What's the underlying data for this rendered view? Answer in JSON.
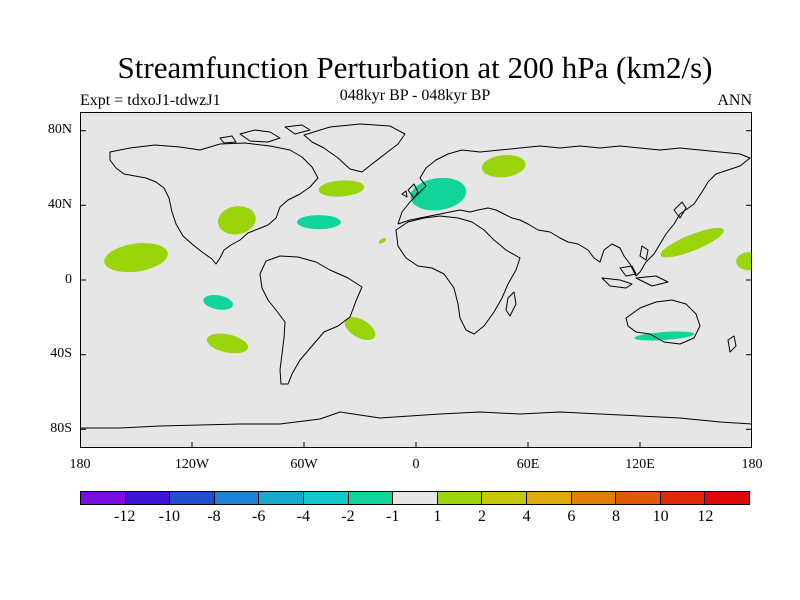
{
  "title": "Streamfunction Perturbation at 200 hPa (km2/s)",
  "subtitle_left": "Expt = tdxoJ1-tdwzJ1",
  "subtitle_center": "048kyr BP - 048kyr BP",
  "subtitle_right": "ANN",
  "y_axis_labels": [
    "80N",
    "40N",
    "0",
    "40S",
    "80S"
  ],
  "x_axis_labels": [
    "180",
    "120W",
    "60W",
    "0",
    "60E",
    "120E",
    "180"
  ],
  "colorbar": {
    "labels": [
      "-12",
      "-10",
      "-8",
      "-6",
      "-4",
      "-2",
      "-1",
      "1",
      "2",
      "4",
      "6",
      "8",
      "10",
      "12"
    ],
    "colors": [
      "#7a0ee0",
      "#3f14d8",
      "#1d4fcf",
      "#1c84d6",
      "#17aacc",
      "#10c8c8",
      "#10d49c",
      "#e6e6e6",
      "#9ad40a",
      "#c8c80a",
      "#e0a80a",
      "#e07e08",
      "#e05a08",
      "#e02a08",
      "#e00808"
    ]
  },
  "colors": {
    "map_background": "#e6e6e6",
    "positive_light": "#9ad40a",
    "negative_light": "#10d49c"
  },
  "chart_data": {
    "type": "map",
    "projection": "cylindrical-equidistant",
    "lon_range": [
      -180,
      180
    ],
    "lat_range": [
      -90,
      90
    ],
    "contour_levels": [
      -12,
      -10,
      -8,
      -6,
      -4,
      -2,
      -1,
      1,
      2,
      4,
      6,
      8,
      10,
      12
    ],
    "anomalies": [
      {
        "name": "east-pacific-positive",
        "lon": -150,
        "lat": 12,
        "category": "1 to 2"
      },
      {
        "name": "date-line-positive",
        "lon": 178,
        "lat": 10,
        "category": "1 to 2"
      },
      {
        "name": "gulf-of-mexico-positive",
        "lon": -96,
        "lat": 32,
        "category": "1 to 2"
      },
      {
        "name": "north-atlantic-positive",
        "lon": -40,
        "lat": 49,
        "category": "1 to 2"
      },
      {
        "name": "north-atlantic-negative",
        "lon": -52,
        "lat": 31,
        "category": "-2 to -1"
      },
      {
        "name": "europe-negative",
        "lon": 12,
        "lat": 46,
        "category": "-2 to -1"
      },
      {
        "name": "west-africa-positive",
        "lon": -18,
        "lat": 21,
        "category": "1 to 2"
      },
      {
        "name": "russia-positive",
        "lon": 47,
        "lat": 61,
        "category": "1 to 2"
      },
      {
        "name": "west-pacific-positive",
        "lon": 148,
        "lat": 20,
        "category": "1 to 2"
      },
      {
        "name": "south-pacific-negative",
        "lon": -106,
        "lat": -12,
        "category": "-2 to -1"
      },
      {
        "name": "southeast-pacific-positive",
        "lon": -101,
        "lat": -34,
        "category": "1 to 2"
      },
      {
        "name": "south-atlantic-positive",
        "lon": -30,
        "lat": -26,
        "category": "1 to 2"
      },
      {
        "name": "australia-negative",
        "lon": 133,
        "lat": -30,
        "category": "-2 to -1"
      }
    ]
  }
}
